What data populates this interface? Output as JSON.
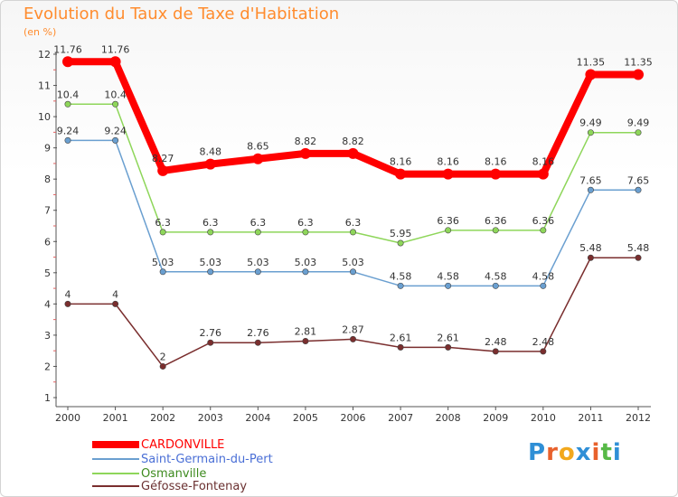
{
  "title": "Evolution du Taux de Taxe d'Habitation",
  "unit_label": "(en %)",
  "logo": {
    "text": "Proxiti",
    "letters": [
      "P",
      "r",
      "o",
      "x",
      "i",
      "t",
      "i"
    ],
    "colors": [
      "#2f8fd6",
      "#e8612c",
      "#f2a81d",
      "#2f8fd6",
      "#e8612c",
      "#57b947",
      "#2f8fd6"
    ]
  },
  "chart_data": {
    "type": "line",
    "title": "Evolution du Taux de Taxe d'Habitation",
    "ylabel": "(en %)",
    "xlabel": "",
    "ylim": [
      1,
      12
    ],
    "yticks": [
      1,
      2,
      3,
      4,
      5,
      6,
      7,
      8,
      9,
      10,
      11,
      12
    ],
    "grid": false,
    "legend_position": "bottom-left",
    "x": [
      "2000",
      "2001",
      "2002",
      "2003",
      "2004",
      "2005",
      "2006",
      "2007",
      "2008",
      "2009",
      "2010",
      "2011",
      "2012"
    ],
    "series": [
      {
        "name": "CARDONVILLE",
        "color": "#ff0000",
        "legend_text_color": "#ff0000",
        "values": [
          11.76,
          11.76,
          8.27,
          8.48,
          8.65,
          8.82,
          8.82,
          8.16,
          8.16,
          8.16,
          8.16,
          11.35,
          11.35
        ],
        "labels": [
          "11.76",
          "11.76",
          "8.27",
          "8.48",
          "8.65",
          "8.82",
          "8.82",
          "8.16",
          "8.16",
          "8.16",
          "8.16",
          "11.35",
          "11.35"
        ]
      },
      {
        "name": "Saint-Germain-du-Pert",
        "color": "#6a9fd0",
        "legend_text_color": "#4a6fd6",
        "values": [
          9.24,
          9.24,
          5.03,
          5.03,
          5.03,
          5.03,
          5.03,
          4.58,
          4.58,
          4.58,
          4.58,
          7.65,
          7.65
        ],
        "labels": [
          "9.24",
          "9.24",
          "5.03",
          "5.03",
          "5.03",
          "5.03",
          "5.03",
          "4.58",
          "4.58",
          "4.58",
          "4.58",
          "7.65",
          "7.65"
        ]
      },
      {
        "name": "Osmanville",
        "color": "#8ed65a",
        "legend_text_color": "#3d8a1e",
        "values": [
          10.4,
          10.4,
          6.3,
          6.3,
          6.3,
          6.3,
          6.3,
          5.95,
          6.36,
          6.36,
          6.36,
          9.49,
          9.49
        ],
        "labels": [
          "10.4",
          "10.4",
          "6.3",
          "6.3",
          "6.3",
          "6.3",
          "6.3",
          "5.95",
          "6.36",
          "6.36",
          "6.36",
          "9.49",
          "9.49"
        ]
      },
      {
        "name": "Géfosse-Fontenay",
        "color": "#7a2e2e",
        "legend_text_color": "#6a3030",
        "values": [
          4,
          4,
          2,
          2.76,
          2.76,
          2.81,
          2.87,
          2.61,
          2.61,
          2.48,
          2.48,
          5.48,
          5.48
        ],
        "labels": [
          "4",
          "4",
          "2",
          "2.76",
          "2.76",
          "2.81",
          "2.87",
          "2.61",
          "2.61",
          "2.48",
          "2.48",
          "5.48",
          "5.48"
        ]
      }
    ]
  }
}
